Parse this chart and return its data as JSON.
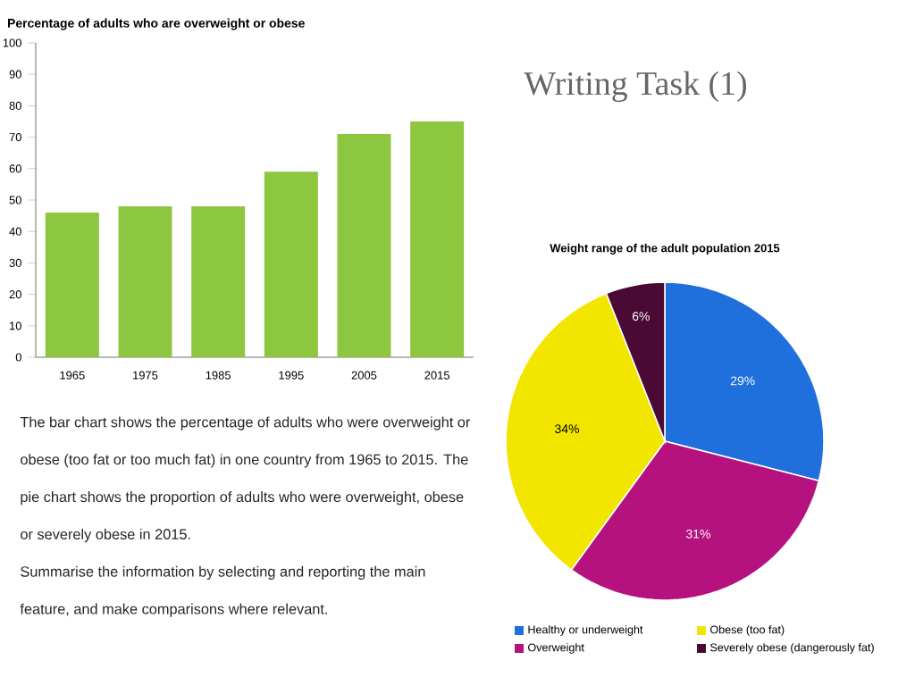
{
  "chart_data": [
    {
      "type": "bar",
      "title": "Percentage of adults who are overweight or obese",
      "categories": [
        "1965",
        "1975",
        "1985",
        "1995",
        "2005",
        "2015"
      ],
      "values": [
        46,
        48,
        48,
        59,
        71,
        75
      ],
      "color": "#8dc63f",
      "ylim": [
        0,
        100
      ],
      "yticks": [
        0,
        10,
        20,
        30,
        40,
        50,
        60,
        70,
        80,
        90,
        100
      ]
    },
    {
      "type": "pie",
      "title": "Weight range of the adult population 2015",
      "categories": [
        "Healthy or underweight",
        "Overweight",
        "Obese (too fat)",
        "Severely obese (dangerously fat)"
      ],
      "values": [
        29,
        31,
        34,
        6
      ],
      "colors": [
        "#1f6fdc",
        "#b5127f",
        "#f2e600",
        "#4a0a35"
      ],
      "value_labels": [
        "29%",
        "31%",
        "34%",
        "6%"
      ],
      "legend": "bottom"
    },
    {
      "type": "other",
      "title": "Writing Task (1)",
      "annotations": [
        "The bar chart shows the percentage of adults who were overweight or obese (too fat or too much fat) in one country from 1965 to 2015. The pie chart shows the proportion of adults who were overweight, obese or severely obese in 2015.",
        "Summarise the information by selecting and reporting the main feature, and make comparisons where relevant."
      ]
    }
  ]
}
